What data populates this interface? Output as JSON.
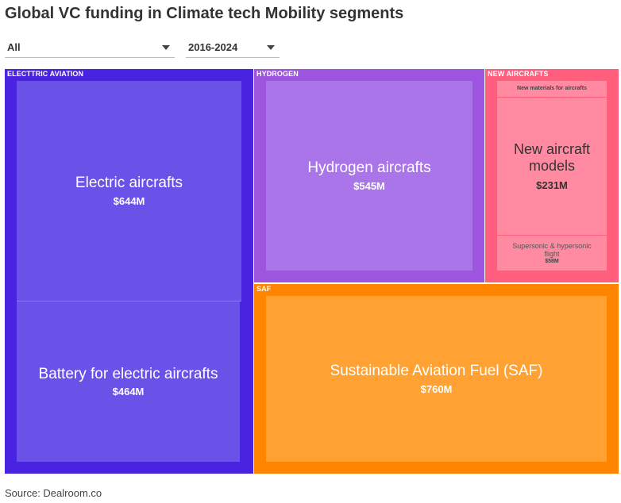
{
  "title": "Global VC funding in Climate tech Mobility segments",
  "filters": {
    "segment": "All",
    "years": "2016-2024"
  },
  "source": "Source: Dealroom.co",
  "colors": {
    "electric_group": "#4a23e0",
    "electric_leaf": "#6a52e8",
    "hydrogen_group": "#9d55e0",
    "hydrogen_leaf": "#ab75ea",
    "aircraft_group": "#ff5f7d",
    "aircraft_leaf": "#ff8aa2",
    "saf_group": "#ff8500",
    "saf_leaf": "#ffa233"
  },
  "chart_data": {
    "type": "treemap",
    "title": "Global VC funding in Climate tech Mobility segments",
    "unit": "$M",
    "groups": [
      {
        "name": "ELECTTRIC AVIATION",
        "children": [
          {
            "name": "Electric aircrafts",
            "value": 644,
            "label": "$644M"
          },
          {
            "name": "Battery for electric aircrafts",
            "value": 464,
            "label": "$464M"
          }
        ]
      },
      {
        "name": "HYDROGEN",
        "children": [
          {
            "name": "Hydrogen aircrafts",
            "value": 545,
            "label": "$545M"
          }
        ]
      },
      {
        "name": "NEW AIRCRAFTS",
        "children": [
          {
            "name": "New materials for aircrafts",
            "value": null,
            "label": ""
          },
          {
            "name": "New aircraft models",
            "value": 231,
            "label": "$231M"
          },
          {
            "name": "Supersonic & hypersonic flight",
            "value": 58,
            "label": "$58M"
          }
        ]
      },
      {
        "name": "SAF",
        "children": [
          {
            "name": "Sustainable Aviation Fuel (SAF)",
            "value": 760,
            "label": "$760M"
          }
        ]
      }
    ]
  }
}
